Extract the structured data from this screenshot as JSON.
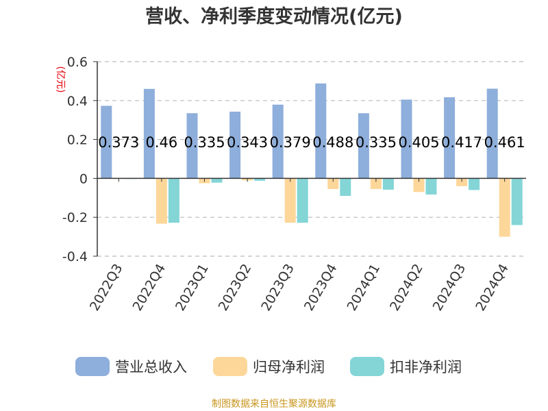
{
  "chart_data": {
    "type": "bar",
    "title": "营收、净利季度变动情况(亿元)",
    "unit_label": "(亿元)",
    "categories": [
      "2022Q3",
      "2022Q4",
      "2023Q1",
      "2023Q2",
      "2023Q3",
      "2023Q4",
      "2024Q1",
      "2024Q2",
      "2024Q3",
      "2024Q4"
    ],
    "series": [
      {
        "name": "营业总收入",
        "color": "#8eaedb",
        "values": [
          0.373,
          0.46,
          0.335,
          0.343,
          0.379,
          0.488,
          0.335,
          0.405,
          0.417,
          0.461
        ]
      },
      {
        "name": "归母净利润",
        "color": "#fdd79a",
        "values": [
          -0.002,
          -0.233,
          -0.025,
          -0.01,
          -0.228,
          -0.055,
          -0.055,
          -0.07,
          -0.04,
          -0.3
        ]
      },
      {
        "name": "扣非净利润",
        "color": "#83d5d6",
        "values": [
          -0.003,
          -0.228,
          -0.022,
          -0.012,
          -0.228,
          -0.09,
          -0.058,
          -0.083,
          -0.06,
          -0.24
        ]
      }
    ],
    "data_labels": [
      "0.373",
      "0.46",
      "0.335",
      "0.343",
      "0.379",
      "0.488",
      "0.335",
      "0.405",
      "0.417",
      "0.461"
    ],
    "ylim": [
      -0.4,
      0.6
    ],
    "yticks": [
      "0.6",
      "0.4",
      "0.2",
      "0",
      "-0.2",
      "-0.4"
    ],
    "grid": true,
    "legend_position": "bottom"
  },
  "footer": {
    "source": "制图数据来自恒生聚源数据库"
  }
}
